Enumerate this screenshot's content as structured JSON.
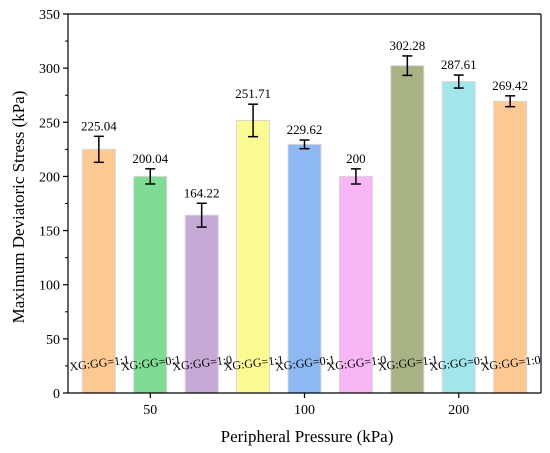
{
  "chart_data": {
    "type": "bar",
    "xlabel": "Peripheral Pressure (kPa)",
    "ylabel": "Maximum Deviatoric Stress (kPa)",
    "ylim": [
      0,
      350
    ],
    "yticks": [
      0,
      50,
      100,
      150,
      200,
      250,
      300,
      350
    ],
    "categories": [
      "50",
      "100",
      "200"
    ],
    "grid": false,
    "bars": [
      {
        "group": "50",
        "label": "XG:GG=1:1",
        "value": 225.04,
        "value_label": "225.04",
        "error": 12,
        "color": "#FDC892"
      },
      {
        "group": "50",
        "label": "XG:GG=0:1",
        "value": 200.04,
        "value_label": "200.04",
        "error": 7,
        "color": "#80DB95"
      },
      {
        "group": "50",
        "label": "XG:GG=1:0",
        "value": 164.22,
        "value_label": "164.22",
        "error": 11,
        "color": "#C7A9D6"
      },
      {
        "group": "100",
        "label": "XG:GG=1:1",
        "value": 251.71,
        "value_label": "251.71",
        "error": 15,
        "color": "#FBFB94"
      },
      {
        "group": "100",
        "label": "XG:GG=0:1",
        "value": 229.62,
        "value_label": "229.62",
        "error": 4,
        "color": "#8DB8F1"
      },
      {
        "group": "100",
        "label": "XG:GG=1:0",
        "value": 200,
        "value_label": "200",
        "error": 7,
        "color": "#F8B6F7"
      },
      {
        "group": "200",
        "label": "XG:GG=1:1",
        "value": 302.28,
        "value_label": "302.28",
        "error": 9,
        "color": "#A8B383"
      },
      {
        "group": "200",
        "label": "XG:GG=0:1",
        "value": 287.61,
        "value_label": "287.61",
        "error": 6,
        "color": "#A2E6EB"
      },
      {
        "group": "200",
        "label": "XG:GG=1:0",
        "value": 269.42,
        "value_label": "269.42",
        "error": 5,
        "color": "#FDC892"
      }
    ]
  }
}
